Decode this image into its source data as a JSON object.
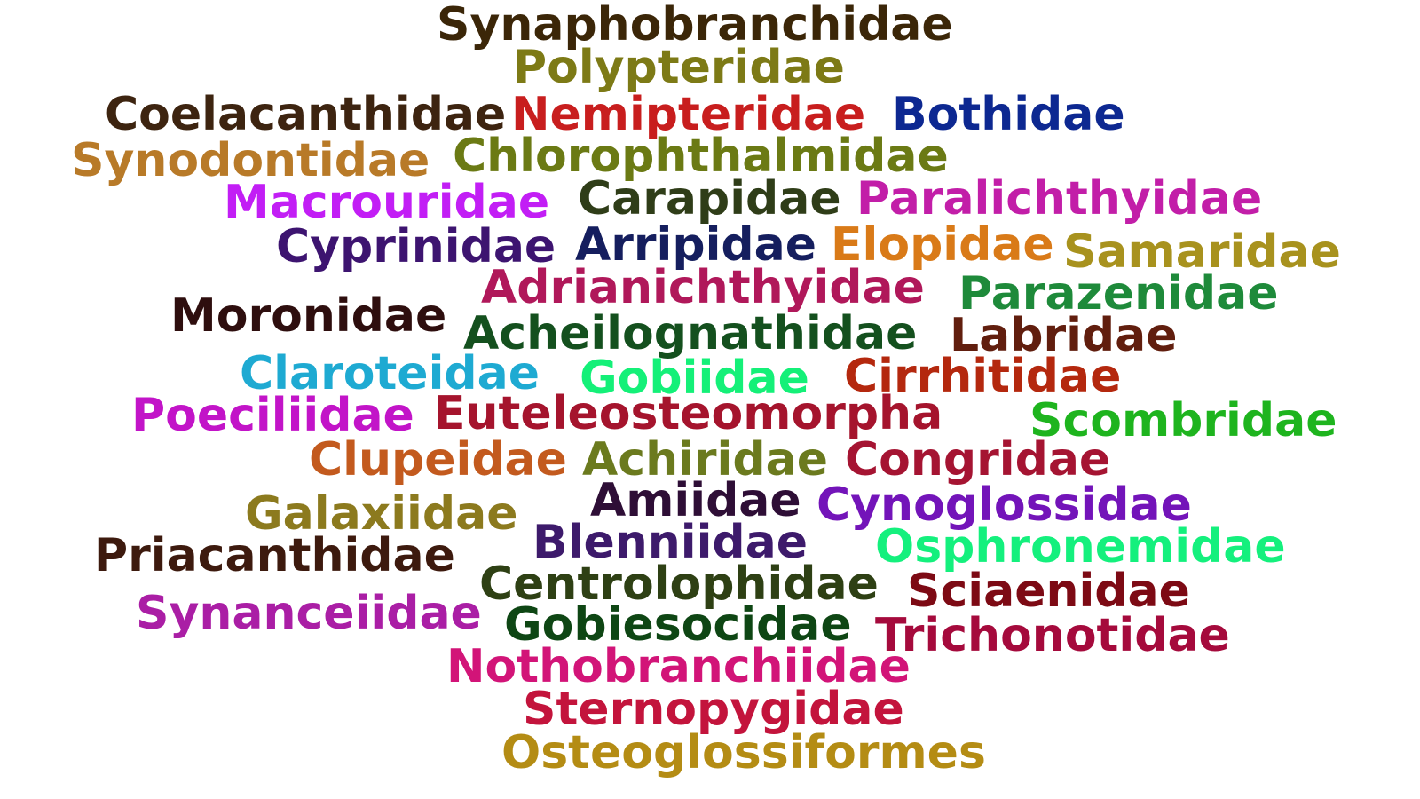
{
  "words": [
    {
      "text": "Synaphobranchidae",
      "color": "#3b2608"
    },
    {
      "text": "Polypteridae",
      "color": "#7d7a16"
    },
    {
      "text": "Coelacanthidae",
      "color": "#3d2410"
    },
    {
      "text": "Nemipteridae",
      "color": "#c81e1e"
    },
    {
      "text": "Bothidae",
      "color": "#0d2891"
    },
    {
      "text": "Synodontidae",
      "color": "#b87a28"
    },
    {
      "text": "Chlorophthalmidae",
      "color": "#6b7a14"
    },
    {
      "text": "Macrouridae",
      "color": "#c21ef5"
    },
    {
      "text": "Carapidae",
      "color": "#2f3d18"
    },
    {
      "text": "Paralichthyidae",
      "color": "#c21ea8"
    },
    {
      "text": "Cyprinidae",
      "color": "#3d1470"
    },
    {
      "text": "Arripidae",
      "color": "#151e5e"
    },
    {
      "text": "Elopidae",
      "color": "#d97a18"
    },
    {
      "text": "Samaridae",
      "color": "#a8921e"
    },
    {
      "text": "Adrianichthyidae",
      "color": "#b0185a"
    },
    {
      "text": "Parazenidae",
      "color": "#1e8a3a"
    },
    {
      "text": "Moronidae",
      "color": "#2e0e0e"
    },
    {
      "text": "Acheilognathidae",
      "color": "#14501e"
    },
    {
      "text": "Labridae",
      "color": "#611e0e"
    },
    {
      "text": "Claroteidae",
      "color": "#1eaad2"
    },
    {
      "text": "Gobiidae",
      "color": "#14f078"
    },
    {
      "text": "Cirrhitidae",
      "color": "#b4280e"
    },
    {
      "text": "Poeciliidae",
      "color": "#c214c8"
    },
    {
      "text": "Euteleosteomorpha",
      "color": "#a5142d"
    },
    {
      "text": "Scombridae",
      "color": "#1eb41e"
    },
    {
      "text": "Clupeidae",
      "color": "#c35a1e"
    },
    {
      "text": "Achiridae",
      "color": "#6b7a1e"
    },
    {
      "text": "Congridae",
      "color": "#a51432"
    },
    {
      "text": "Amiidae",
      "color": "#2e0e36"
    },
    {
      "text": "Cynoglossidae",
      "color": "#7314b9"
    },
    {
      "text": "Galaxiidae",
      "color": "#8c7a1e"
    },
    {
      "text": "Blenniidae",
      "color": "#3d1a6b"
    },
    {
      "text": "Osphronemidae",
      "color": "#14f07d"
    },
    {
      "text": "Priacanthidae",
      "color": "#3d1a0e"
    },
    {
      "text": "Centrolophidae",
      "color": "#2e4014"
    },
    {
      "text": "Sciaenidae",
      "color": "#7d0a14"
    },
    {
      "text": "Synanceiidae",
      "color": "#aa1ea5"
    },
    {
      "text": "Gobiesocidae",
      "color": "#0e4614"
    },
    {
      "text": "Trichonotidae",
      "color": "#a50a3c"
    },
    {
      "text": "Nothobranchiidae",
      "color": "#d21478"
    },
    {
      "text": "Sternopygidae",
      "color": "#c3143c"
    },
    {
      "text": "Osteoglossiformes",
      "color": "#b48c14"
    }
  ]
}
